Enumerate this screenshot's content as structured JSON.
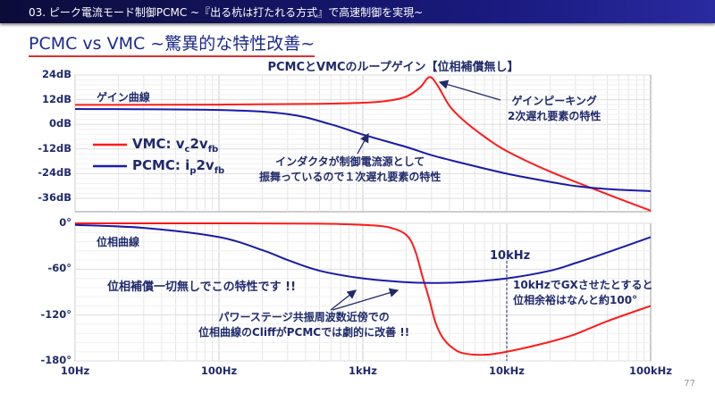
{
  "header": {
    "section": "03. ピーク電流モード制御PCMC ~『出る杭は打たれる方式』で高速制御を実現~"
  },
  "slide": {
    "title": "PCMC vs VMC ~驚異的な特性改善~",
    "page": "77"
  },
  "colors": {
    "vmc": "#ff1a1a",
    "pcmc": "#1a1aaa",
    "grid": "#dddddd",
    "text": "#1f2a6b"
  },
  "chart_data": [
    {
      "type": "line",
      "title": "PCMCとVMCのループゲイン【位相補償無し】",
      "panel_label": "ゲイン曲線",
      "xscale": "log",
      "xlim": [
        10,
        100000
      ],
      "ylim": [
        -42,
        24
      ],
      "yticks": [
        "24dB",
        "12dB",
        "0dB",
        "-12dB",
        "-24dB",
        "-36dB"
      ],
      "ytick_values": [
        24,
        12,
        0,
        -12,
        -24,
        -36
      ],
      "series": [
        {
          "name": "VMC: vc2vfb",
          "x": [
            10,
            100,
            500,
            1000,
            1500,
            2000,
            2500,
            2900,
            3300,
            4000,
            5000,
            7000,
            10000,
            20000,
            50000,
            100000
          ],
          "y": [
            9.5,
            9.6,
            10,
            10.5,
            11.5,
            13.5,
            18,
            23,
            19,
            9,
            2,
            -6,
            -13,
            -23,
            -34,
            -42
          ]
        },
        {
          "name": "PCMC: ip2vfb",
          "x": [
            10,
            100,
            300,
            600,
            1000,
            2000,
            3000,
            5000,
            10000,
            20000,
            30000,
            50000,
            100000
          ],
          "y": [
            7.5,
            7,
            5,
            0,
            -5,
            -11,
            -15,
            -19,
            -24,
            -28,
            -30,
            -31.5,
            -32.5
          ]
        }
      ],
      "annotations": [
        "ゲインピーキング",
        "2次遅れ要素の特性",
        "インダクタが制御電流源として",
        "振舞っているので１次遅れ要素の特性"
      ],
      "legend": [
        {
          "label": "VMC: v",
          "sub": "c",
          "mid": "2v",
          "sub2": "fb"
        },
        {
          "label": "PCMC: i",
          "sub": "p",
          "mid": "2v",
          "sub2": "fb"
        }
      ],
      "legend_placement": "left"
    },
    {
      "type": "line",
      "panel_label": "位相曲線",
      "xscale": "log",
      "xlim": [
        10,
        100000
      ],
      "ylim": [
        -180,
        0
      ],
      "yticks": [
        "0°",
        "-60°",
        "-120°",
        "-180°"
      ],
      "ytick_values": [
        0,
        -60,
        -120,
        -180
      ],
      "xticks": [
        "10Hz",
        "100Hz",
        "1kHz",
        "10kHz",
        "100kHz"
      ],
      "xtick_values": [
        10,
        100,
        1000,
        10000,
        100000
      ],
      "series": [
        {
          "name": "VMC",
          "x": [
            10,
            100,
            500,
            1000,
            1500,
            2000,
            2300,
            2600,
            2900,
            3200,
            3600,
            4200,
            5000,
            7000,
            10000,
            20000,
            30000,
            50000,
            100000
          ],
          "y": [
            0,
            0,
            -0.5,
            -2,
            -5,
            -15,
            -35,
            -70,
            -100,
            -130,
            -150,
            -163,
            -170,
            -172,
            -168,
            -155,
            -145,
            -128,
            -108
          ]
        },
        {
          "name": "PCMC",
          "x": [
            10,
            30,
            100,
            200,
            300,
            500,
            1000,
            2000,
            3000,
            5000,
            10000,
            20000,
            30000,
            50000,
            100000
          ],
          "y": [
            -2,
            -6,
            -18,
            -35,
            -48,
            -62,
            -72,
            -77,
            -78,
            -77,
            -72,
            -62,
            -52,
            -38,
            -18
          ]
        }
      ],
      "marker": {
        "x": 10000,
        "label": "10kHz"
      },
      "annotations": [
        "位相補償一切無しでこの特性です !!",
        "パワーステージ共振周波数近傍での",
        "位相曲線のCliffがPCMCでは劇的に改善 !!",
        "10kHzでGXさせたとすると",
        "位相余裕はなんと約100°"
      ]
    }
  ]
}
